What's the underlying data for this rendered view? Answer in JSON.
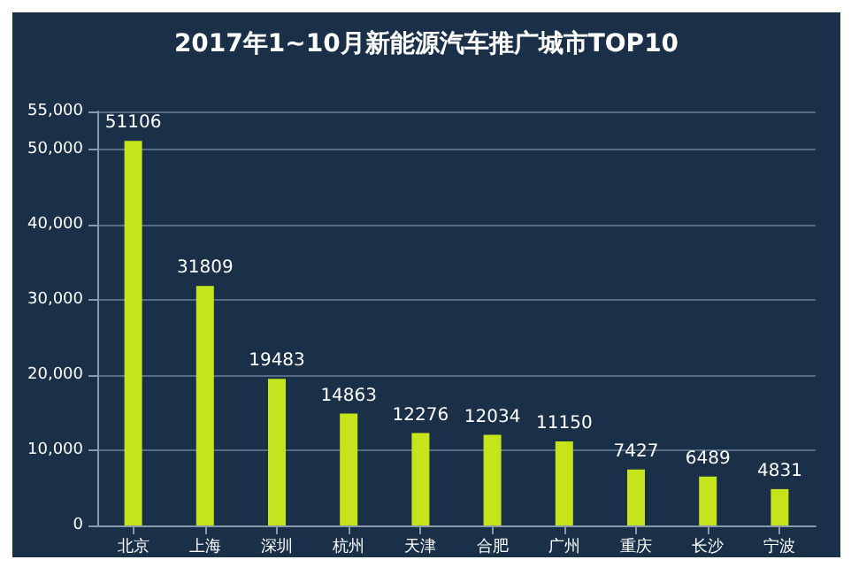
{
  "chart_data": {
    "type": "bar",
    "title": "2017年1~10月新能源汽车推广城市TOP10",
    "categories": [
      "北京",
      "上海",
      "深圳",
      "杭州",
      "天津",
      "合肥",
      "广州",
      "重庆",
      "长沙",
      "宁波"
    ],
    "values": [
      51106,
      31809,
      19483,
      14863,
      12276,
      12034,
      11150,
      7427,
      6489,
      4831
    ],
    "color": "#c5e41b",
    "data_labels": true,
    "grid": "y",
    "ylim": [
      0,
      55000
    ],
    "yticks": [
      {
        "value": 0,
        "label": "0"
      },
      {
        "value": 10000,
        "label": "10,000"
      },
      {
        "value": 20000,
        "label": "20,000"
      },
      {
        "value": 30000,
        "label": "30,000"
      },
      {
        "value": 40000,
        "label": "40,000"
      },
      {
        "value": 50000,
        "label": "50,000"
      },
      {
        "value": 55000,
        "label": "55,000"
      }
    ]
  }
}
